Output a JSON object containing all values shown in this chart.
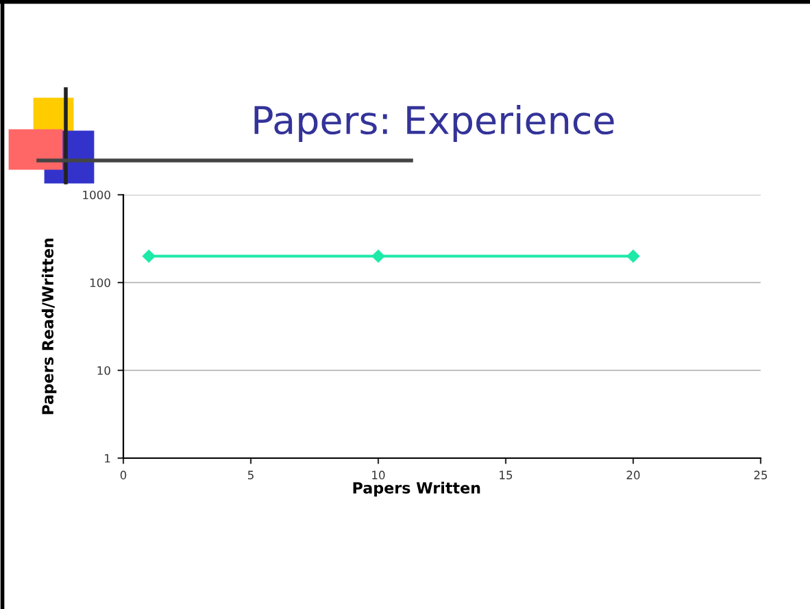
{
  "chart_data": {
    "type": "line",
    "title": "Papers: Experience",
    "xlabel": "Papers Written",
    "ylabel": "Papers Read/Written",
    "series": [
      {
        "color": "#1de9a8",
        "x": [
          1,
          10,
          20
        ],
        "values": [
          200,
          200,
          200
        ]
      }
    ],
    "log": "y",
    "xlim": [
      0,
      25
    ],
    "xticks": [
      0,
      5,
      10,
      15,
      20,
      25
    ],
    "ylim": [
      1,
      1000
    ],
    "yticks": [
      1,
      10,
      100,
      1000
    ],
    "grid": "y",
    "marker": "diamond",
    "line_style": "solid",
    "legend": false
  }
}
